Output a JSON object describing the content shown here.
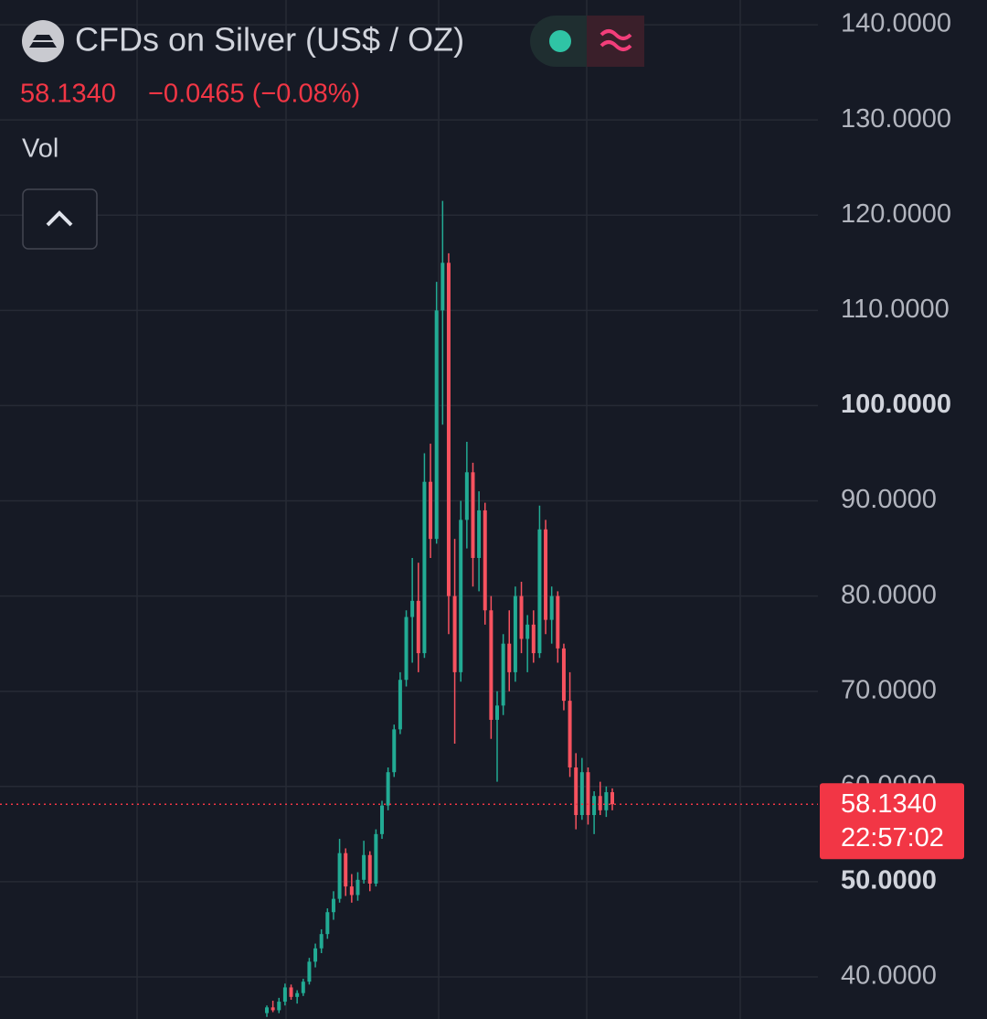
{
  "chart_data": {
    "type": "candlestick",
    "title": "CFDs on Silver (US$ / OZ)",
    "last_price": {
      "value": 58.134,
      "label": "58.1340"
    },
    "change": "−0.0465 (−0.08%)",
    "volume_label": "Vol",
    "countdown": "22:57:02",
    "up_color": "#22ab94",
    "down_color": "#f7525f",
    "grid": true,
    "ylim": [
      35.58,
      142.6
    ],
    "yticks": [
      {
        "value": 40,
        "label": "40.0000"
      },
      {
        "value": 50,
        "label": "50.0000",
        "bold": true
      },
      {
        "value": 60,
        "label": "60.0000"
      },
      {
        "value": 70,
        "label": "70.0000"
      },
      {
        "value": 80,
        "label": "80.0000"
      },
      {
        "value": 90,
        "label": "90.0000"
      },
      {
        "value": 100,
        "label": "100.0000",
        "bold": true
      },
      {
        "value": 110,
        "label": "110.0000"
      },
      {
        "value": 120,
        "label": "120.0000"
      },
      {
        "value": 130,
        "label": "130.0000"
      },
      {
        "value": 140,
        "label": "140.0000"
      }
    ],
    "open": [
      36.2,
      36.8,
      36.5,
      37.4,
      38.9,
      37.9,
      38.3,
      39.5,
      41.6,
      43.0,
      44.5,
      46.8,
      48.2,
      53.0,
      49.5,
      48.6,
      50.2,
      52.8,
      49.8,
      55.0,
      58.0,
      61.5,
      66.0,
      71.2,
      77.8,
      79.5,
      74.0,
      92.0,
      86.0,
      110.0,
      115.0,
      80.0,
      72.0,
      88.0,
      93.0,
      84.0,
      89.0,
      78.5,
      67.0,
      68.5,
      75.0,
      72.0,
      80.0,
      75.5,
      77.0,
      74.0,
      87.0,
      77.5,
      80.0,
      74.5,
      69.0,
      62.0,
      57.0,
      61.5,
      57.0,
      59.0,
      57.5,
      59.4
    ],
    "high": [
      37.0,
      37.5,
      37.8,
      39.3,
      39.2,
      38.6,
      39.8,
      42.0,
      43.5,
      45.0,
      47.2,
      49.0,
      54.5,
      53.5,
      50.8,
      51.0,
      54.3,
      53.2,
      55.5,
      58.5,
      62.0,
      66.5,
      72.0,
      78.5,
      84.0,
      83.5,
      95.0,
      96.0,
      113.0,
      121.5,
      116.0,
      86.0,
      90.0,
      96.2,
      94.0,
      91.0,
      89.8,
      80.0,
      70.0,
      76.0,
      78.5,
      81.0,
      81.5,
      78.0,
      78.5,
      89.5,
      88.0,
      81.0,
      80.5,
      75.0,
      72.0,
      63.5,
      63.0,
      62.0,
      59.5,
      60.5,
      60.0,
      59.8
    ],
    "low": [
      35.8,
      36.3,
      36.2,
      37.0,
      37.6,
      37.2,
      38.0,
      39.2,
      41.0,
      42.5,
      44.0,
      46.0,
      47.8,
      48.5,
      47.8,
      48.0,
      49.8,
      49.0,
      49.5,
      54.5,
      57.5,
      61.0,
      65.5,
      70.5,
      73.0,
      72.0,
      73.5,
      84.0,
      85.5,
      98.0,
      76.0,
      64.5,
      71.0,
      85.0,
      81.0,
      80.5,
      77.0,
      65.0,
      60.5,
      67.5,
      70.0,
      71.0,
      74.0,
      72.0,
      73.0,
      73.5,
      76.0,
      75.0,
      73.0,
      68.0,
      61.0,
      55.5,
      56.5,
      56.0,
      55.0,
      57.0,
      56.8,
      57.5
    ],
    "close": [
      36.8,
      36.5,
      37.4,
      38.9,
      37.9,
      38.3,
      39.5,
      41.6,
      43.0,
      44.5,
      46.8,
      48.2,
      53.0,
      49.5,
      48.6,
      50.2,
      52.8,
      49.8,
      55.0,
      58.0,
      61.5,
      66.0,
      71.2,
      77.8,
      79.5,
      74.0,
      92.0,
      86.0,
      110.0,
      115.0,
      80.0,
      72.0,
      88.0,
      93.0,
      84.0,
      89.0,
      78.5,
      67.0,
      68.5,
      75.0,
      72.0,
      80.0,
      75.5,
      77.0,
      74.0,
      87.0,
      77.5,
      80.0,
      74.5,
      69.0,
      62.0,
      57.0,
      61.5,
      57.0,
      59.0,
      57.5,
      59.4,
      58.134
    ]
  }
}
